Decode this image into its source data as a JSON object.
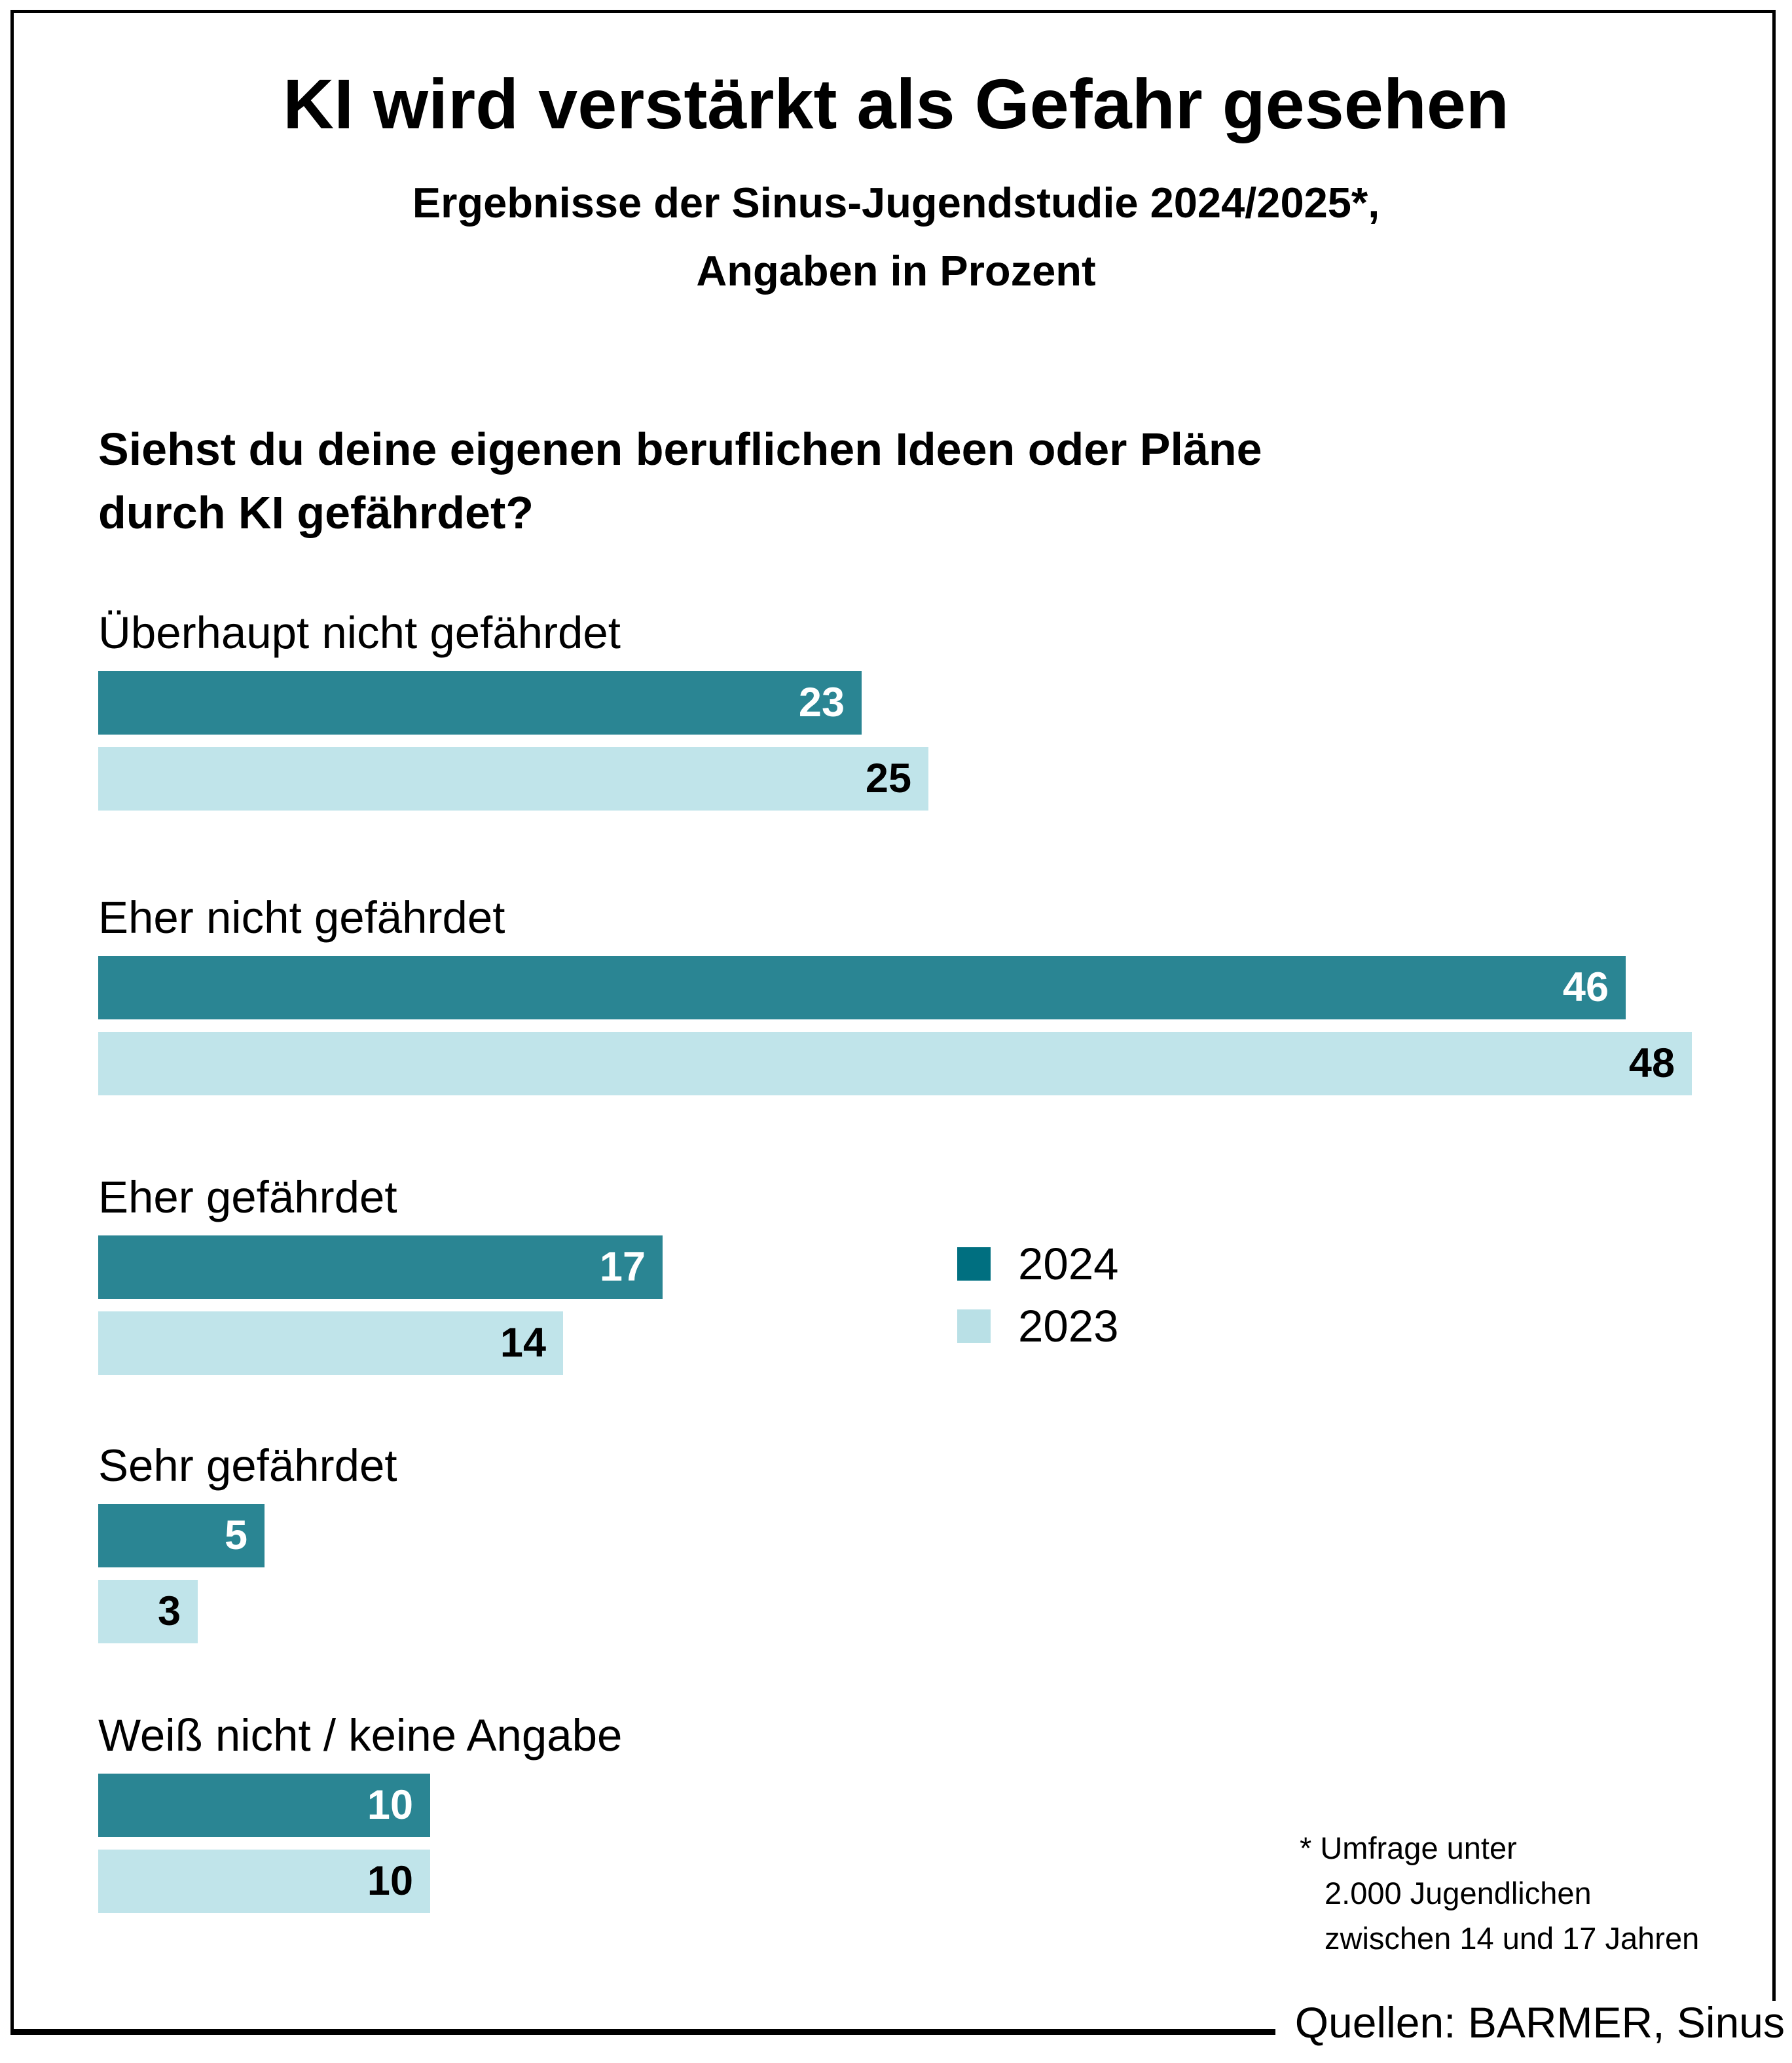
{
  "header": {
    "title": "KI wird verstärkt als Gefahr gesehen",
    "subtitle_line1": "Ergebnisse der Sinus-Jugendstudie 2024/2025*,",
    "subtitle_line2": "Angaben in Prozent"
  },
  "question": {
    "line1": "Siehst du deine eigenen beruflichen Ideen oder Pläne",
    "line2": "durch KI gefährdet?"
  },
  "chart_data": {
    "type": "bar",
    "orientation": "horizontal",
    "unit": "percent",
    "title": "KI wird verstärkt als Gefahr gesehen",
    "categories": [
      "Überhaupt nicht gefährdet",
      "Eher nicht gefährdet",
      "Eher gefährdet",
      "Sehr gefährdet",
      "Weiß nicht / keine Angabe"
    ],
    "series": [
      {
        "name": "2024",
        "values": [
          23,
          46,
          17,
          5,
          10
        ]
      },
      {
        "name": "2023",
        "values": [
          25,
          48,
          14,
          3,
          10
        ]
      }
    ],
    "xmax": 48,
    "value_labels": "inside-end",
    "legend_position": "middle-right",
    "grid": false
  },
  "legend": {
    "items": [
      {
        "label": "2024",
        "color": "#006F80"
      },
      {
        "label": "2023",
        "color": "#B9E0E6"
      }
    ]
  },
  "colors": {
    "bar_2024": "#2A8593",
    "bar_2023": "#C0E4EA",
    "value_label_2024": "#FFFFFF",
    "value_label_2023": "#000000",
    "frame": "#000000",
    "background": "#FFFFFF"
  },
  "footnote": {
    "marker": "*",
    "lines": [
      "Umfrage unter",
      "2.000 Jugendlichen",
      "zwischen 14 und 17 Jahren"
    ]
  },
  "source": "Quellen: BARMER, Sinus"
}
